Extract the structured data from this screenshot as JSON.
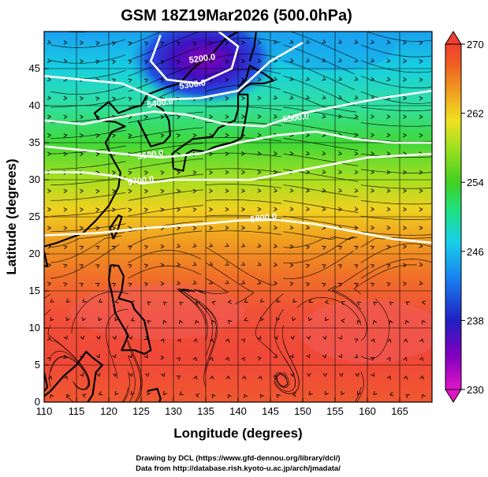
{
  "title": "GSM 18Z19Mar2026 (500.0hPa)",
  "xlabel": "Longitude (degrees)",
  "ylabel": "Latitude (degrees)",
  "credits": {
    "line1": "Drawing by DCL (https://www.gfd-dennou.org/library/dcl/)",
    "line2": "Data from http://database.rish.kyoto-u.ac.jp/arch/jmadata/"
  },
  "axes": {
    "lon_range": [
      110,
      170
    ],
    "lat_range": [
      0,
      50
    ],
    "lon_ticks": [
      "110",
      "115",
      "120",
      "125",
      "130",
      "135",
      "140",
      "145",
      "150",
      "155",
      "160",
      "165"
    ],
    "lat_ticks": [
      "0",
      "5",
      "10",
      "15",
      "20",
      "25",
      "30",
      "35",
      "40",
      "45"
    ]
  },
  "colorbar": {
    "range": [
      230,
      270
    ],
    "ticks": [
      "230",
      "238",
      "246",
      "254",
      "262",
      "270"
    ],
    "colors": [
      "#e015c8",
      "#8000c0",
      "#2020c0",
      "#1880f0",
      "#18d0e8",
      "#20e080",
      "#40d020",
      "#a0e020",
      "#f0e020",
      "#f0a020",
      "#f06020",
      "#f04030"
    ]
  },
  "contours": [
    {
      "label": "5200.0",
      "lon": 134.5,
      "lat": 46
    },
    {
      "label": "5300.0",
      "lon": 133,
      "lat": 42.5
    },
    {
      "label": "5400.0",
      "lon": 128,
      "lat": 40
    },
    {
      "label": "5500.0",
      "lon": 149,
      "lat": 38
    },
    {
      "label": "5600.0",
      "lon": 126.5,
      "lat": 33
    },
    {
      "label": "5700.0",
      "lon": 125,
      "lat": 29.5
    },
    {
      "label": "5800.0",
      "lon": 144,
      "lat": 24.5
    }
  ],
  "grid": "on",
  "field": "temperature (K) with height contours (m) and streamlines"
}
